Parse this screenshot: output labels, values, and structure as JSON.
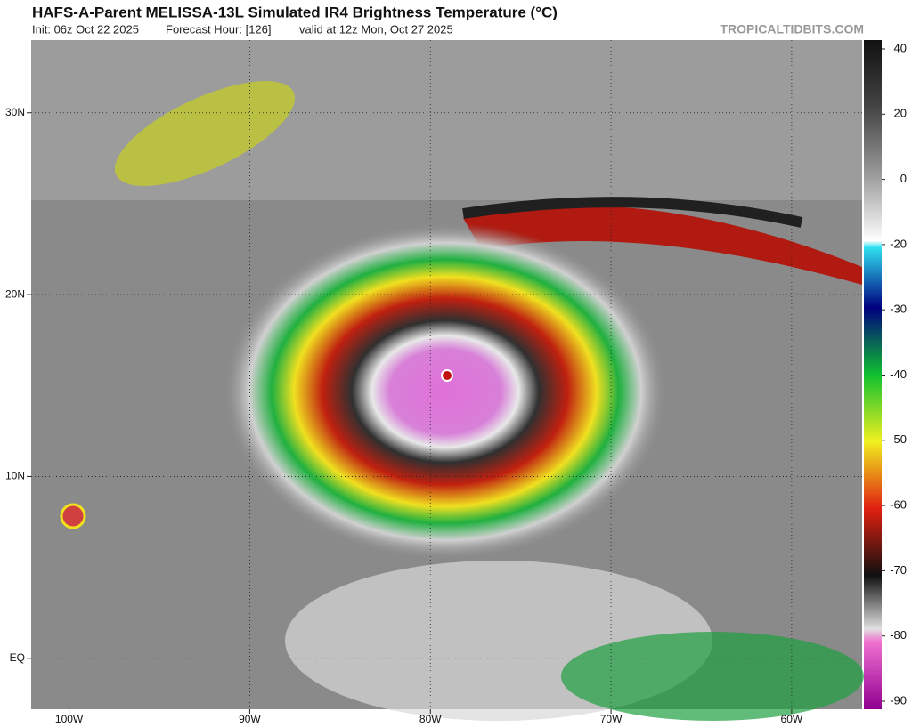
{
  "map": {
    "title": "HAFS-A-Parent MELISSA-13L Simulated IR4 Brightness Temperature (°C)",
    "init": "Init: 06z Oct 22 2025",
    "forecast_hour": "Forecast Hour: [126]",
    "valid": "valid at 12z Mon, Oct 27 2025",
    "watermark": "TROPICALTIDBITS.COM",
    "xlim": [
      -102.1,
      -56.1
    ],
    "ylim": [
      -2.8,
      34
    ],
    "xticks": [
      {
        "value": -100,
        "label": "100W"
      },
      {
        "value": -90,
        "label": "90W"
      },
      {
        "value": -80,
        "label": "80W"
      },
      {
        "value": -70,
        "label": "70W"
      },
      {
        "value": -60,
        "label": "60W"
      }
    ],
    "yticks": [
      {
        "value": 30,
        "label": "30N"
      },
      {
        "value": 20,
        "label": "20N"
      },
      {
        "value": 10,
        "label": "10N"
      },
      {
        "value": 0,
        "label": "EQ"
      }
    ],
    "colorbar_ticks": [
      40,
      20,
      0,
      -20,
      -30,
      -40,
      -50,
      -60,
      -70,
      -80,
      -90
    ]
  }
}
